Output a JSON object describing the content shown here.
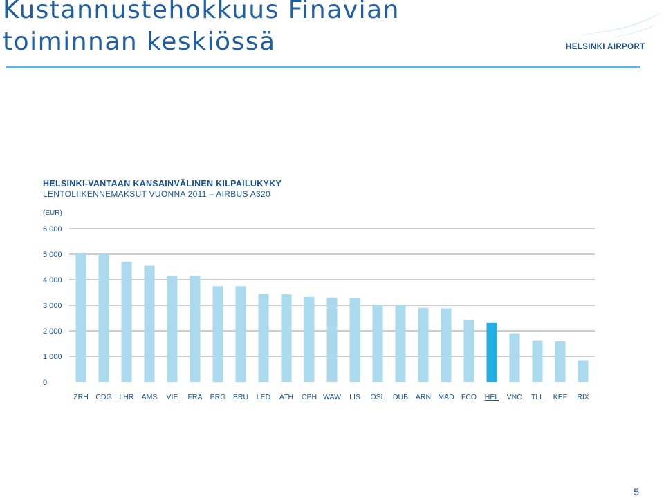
{
  "slide": {
    "title_line1": "Kustannustehokkuus Finavian",
    "title_line2": "toiminnan keskiössä",
    "logo_text": "HELSINKI AIRPORT",
    "page_number": "5"
  },
  "colors": {
    "title": "#1f5fa6",
    "bar": "#abdaef",
    "highlight_bar": "#22aee2",
    "chart_text": "#17529a",
    "gridline": "#9a9a9a",
    "rule": "#5db3df"
  },
  "chart_data": {
    "type": "bar",
    "title": "HELSINKI-VANTAAN KANSAINVÄLINEN KILPAILUKYKY",
    "subtitle": "LENTOLIIKENNEMAKSUT VUONNA 2011 – AIRBUS A320",
    "ylabel": "(EUR)",
    "xlabel": "",
    "ylim": [
      0,
      6000
    ],
    "yticks": [
      0,
      1000,
      2000,
      3000,
      4000,
      5000,
      6000
    ],
    "ytick_labels": [
      "0",
      "1 000",
      "2 000",
      "3 000",
      "4 000",
      "5 000",
      "6 000"
    ],
    "grid": true,
    "categories": [
      "ZRH",
      "CDG",
      "LHR",
      "AMS",
      "VIE",
      "FRA",
      "PRG",
      "BRU",
      "LED",
      "ATH",
      "CPH",
      "WAW",
      "LIS",
      "OSL",
      "DUB",
      "ARN",
      "MAD",
      "FCO",
      "HEL",
      "VNO",
      "TLL",
      "KEF",
      "RIX"
    ],
    "values": [
      5050,
      5000,
      4700,
      4550,
      4150,
      4150,
      3750,
      3750,
      3450,
      3430,
      3330,
      3300,
      3280,
      3030,
      3020,
      2900,
      2880,
      2420,
      2330,
      1900,
      1630,
      1600,
      850
    ],
    "highlight": "HEL"
  }
}
